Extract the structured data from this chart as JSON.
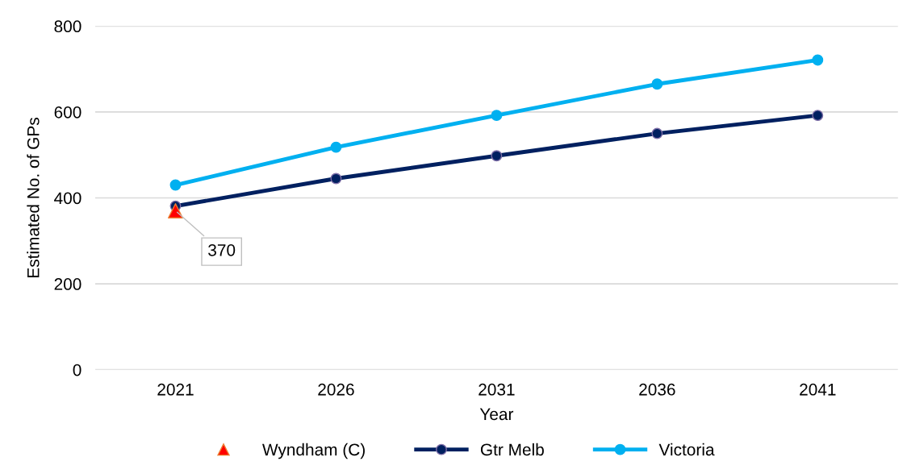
{
  "chart_data": {
    "type": "line",
    "xlabel": "Year",
    "ylabel": "Estimated No. of GPs",
    "categories": [
      "2021",
      "2026",
      "2031",
      "2036",
      "2041"
    ],
    "ylim": [
      0,
      800
    ],
    "yticks": [
      0,
      200,
      400,
      600,
      800
    ],
    "grid": "y",
    "legend": "bottom",
    "marker": "circle",
    "series": [
      {
        "name": "Wyndham (C)",
        "type": "scatter",
        "marker": "triangle",
        "color": "#ff0000",
        "values": [
          370,
          null,
          null,
          null,
          null
        ],
        "value_labels": [
          "370",
          null,
          null,
          null,
          null
        ]
      },
      {
        "name": "Gtr Melb",
        "color": "#002060",
        "values": [
          381,
          445,
          498,
          550,
          592
        ]
      },
      {
        "name": "Victoria",
        "color": "#00b0f0",
        "values": [
          430,
          518,
          592,
          665,
          721
        ]
      }
    ]
  }
}
